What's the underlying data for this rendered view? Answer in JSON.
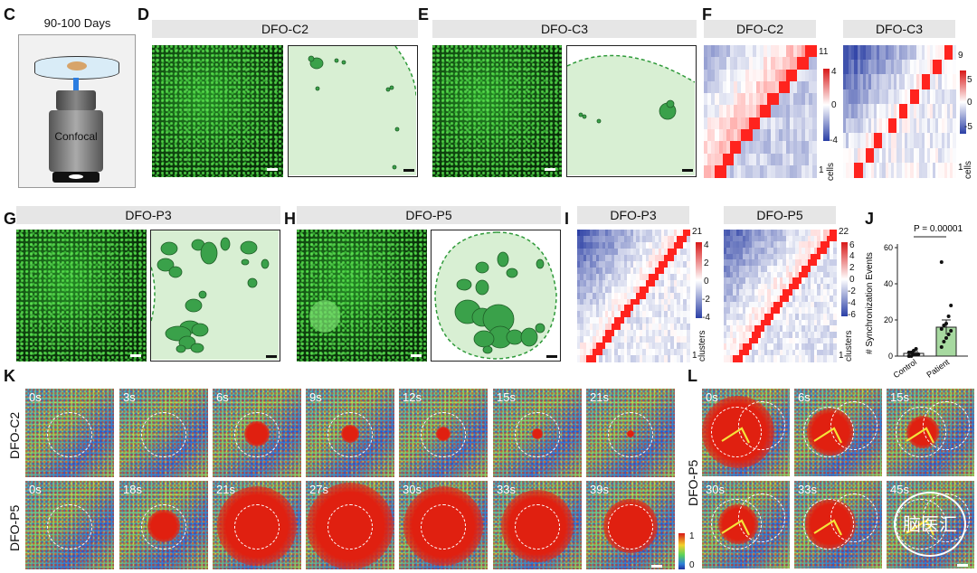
{
  "panels": {
    "C": {
      "letter": "C",
      "title": "90-100 Days",
      "instrument": "Confocal"
    },
    "D": {
      "letter": "D",
      "title": "DFO-C2"
    },
    "E": {
      "letter": "E",
      "title": "DFO-C3"
    },
    "F": {
      "letter": "F",
      "left_title": "DFO-C2",
      "right_title": "DFO-C3",
      "left_colorbar": {
        "max": "11",
        "ticks": [
          "4",
          "0",
          "-4"
        ],
        "min": "1",
        "unit": "cells"
      },
      "right_colorbar": {
        "max": "9",
        "ticks": [
          "5",
          "0",
          "-5"
        ],
        "min": "1",
        "unit": "cells"
      }
    },
    "G": {
      "letter": "G",
      "title": "DFO-P3"
    },
    "H": {
      "letter": "H",
      "title": "DFO-P5"
    },
    "I": {
      "letter": "I",
      "left_title": "DFO-P3",
      "right_title": "DFO-P5",
      "left_colorbar": {
        "max": "21",
        "ticks": [
          "4",
          "2",
          "0",
          "-2",
          "-4"
        ],
        "min": "1",
        "unit": "clusters"
      },
      "right_colorbar": {
        "max": "22",
        "ticks": [
          "6",
          "4",
          "2",
          "0",
          "-2",
          "-4",
          "-6"
        ],
        "min": "1",
        "unit": "clusters"
      }
    },
    "J": {
      "letter": "J",
      "pvalue": "P = 0.00001"
    },
    "K": {
      "letter": "K",
      "row1_label": "DFO-C2",
      "row2_label": "DFO-P5",
      "row1_times": [
        "0s",
        "3s",
        "6s",
        "9s",
        "12s",
        "15s",
        "21s"
      ],
      "row2_times": [
        "0s",
        "18s",
        "21s",
        "27s",
        "30s",
        "33s",
        "39s"
      ],
      "colorbar": {
        "max": "1",
        "min": "0"
      }
    },
    "L": {
      "letter": "L",
      "row_label": "DFO-P5",
      "times": [
        "0s",
        "6s",
        "15s",
        "30s",
        "33s",
        "45s"
      ],
      "watermark": "脑医汇"
    }
  },
  "chart_data": {
    "type": "bar",
    "categories": [
      "Control",
      "Patient"
    ],
    "values": [
      1.5,
      16
    ],
    "errors": [
      1,
      4
    ],
    "points": {
      "Control": [
        0,
        0,
        1,
        1,
        1,
        2,
        2,
        3,
        4,
        1,
        0,
        2
      ],
      "Patient": [
        5,
        8,
        10,
        12,
        14,
        15,
        17,
        18,
        22,
        28,
        52
      ]
    },
    "ylabel": "# Synchronization Events",
    "yticks": [
      0,
      20,
      40,
      60
    ],
    "ylim": [
      0,
      60
    ],
    "bar_colors": [
      "#ffffff",
      "#a7d9a0"
    ]
  }
}
